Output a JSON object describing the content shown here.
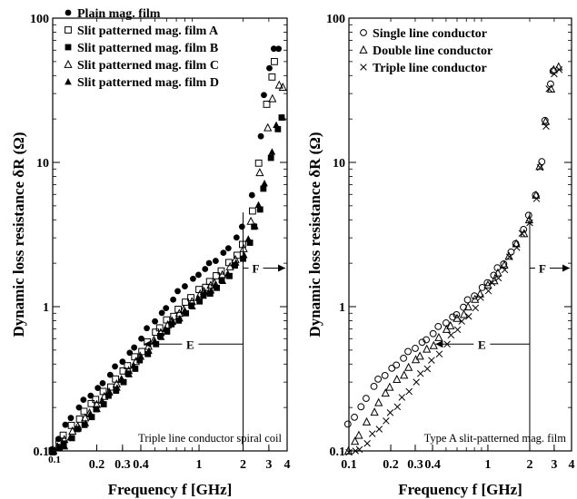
{
  "chart_data": [
    {
      "type": "scatter",
      "xlabel": "Frequency  f [GHz]",
      "ylabel": "Dynamic loss resistance  δR (Ω)",
      "x_scale": "log",
      "y_scale": "log",
      "xlim": [
        0.1,
        4
      ],
      "ylim": [
        0.1,
        100
      ],
      "x_ticks": [
        "0.1",
        "0.2",
        "0.3",
        "0.4",
        "1",
        "2",
        "3",
        "4"
      ],
      "y_ticks": [
        "0.1",
        "1",
        "10",
        "100"
      ],
      "annotation": "Triple line conductor spiral coil",
      "regions": {
        "e_label": "E",
        "f_label": "F",
        "boundary_ghz": 2
      },
      "legend_position": "top-left",
      "series": [
        {
          "name": "Plain mag. film",
          "marker": "filled-circle",
          "points": [
            [
              0.1,
              0.1
            ],
            [
              0.12,
              0.15
            ],
            [
              0.15,
              0.2
            ],
            [
              0.2,
              0.27
            ],
            [
              0.3,
              0.42
            ],
            [
              0.4,
              0.6
            ],
            [
              0.5,
              0.8
            ],
            [
              0.6,
              1.0
            ],
            [
              0.8,
              1.4
            ],
            [
              1,
              1.7
            ],
            [
              1.3,
              2.1
            ],
            [
              1.6,
              2.6
            ],
            [
              2,
              3.5
            ],
            [
              2.3,
              6
            ],
            [
              2.6,
              15
            ],
            [
              2.8,
              30
            ],
            [
              3,
              45
            ],
            [
              3.3,
              60
            ],
            [
              3.5,
              62
            ]
          ]
        },
        {
          "name": "Slit patterned mag. film A",
          "marker": "open-square",
          "points": [
            [
              0.1,
              0.1
            ],
            [
              0.12,
              0.13
            ],
            [
              0.15,
              0.17
            ],
            [
              0.2,
              0.23
            ],
            [
              0.3,
              0.35
            ],
            [
              0.4,
              0.5
            ],
            [
              0.5,
              0.65
            ],
            [
              0.6,
              0.8
            ],
            [
              0.8,
              1.05
            ],
            [
              1,
              1.3
            ],
            [
              1.3,
              1.6
            ],
            [
              1.6,
              2.0
            ],
            [
              2,
              2.7
            ],
            [
              2.3,
              4.5
            ],
            [
              2.6,
              10
            ],
            [
              2.9,
              25
            ],
            [
              3.1,
              40
            ],
            [
              3.3,
              50
            ]
          ]
        },
        {
          "name": "Slit patterned mag. film B",
          "marker": "filled-square",
          "points": [
            [
              0.1,
              0.1
            ],
            [
              0.12,
              0.11
            ],
            [
              0.15,
              0.14
            ],
            [
              0.2,
              0.19
            ],
            [
              0.3,
              0.3
            ],
            [
              0.4,
              0.42
            ],
            [
              0.5,
              0.55
            ],
            [
              0.6,
              0.68
            ],
            [
              0.8,
              0.9
            ],
            [
              1,
              1.1
            ],
            [
              1.3,
              1.35
            ],
            [
              1.6,
              1.65
            ],
            [
              2,
              2.2
            ],
            [
              2.4,
              3.5
            ],
            [
              2.8,
              6.5
            ],
            [
              3.1,
              11
            ],
            [
              3.4,
              17
            ],
            [
              3.7,
              20
            ]
          ]
        },
        {
          "name": "Slit patterned mag. film C",
          "marker": "open-triangle",
          "points": [
            [
              0.1,
              0.1
            ],
            [
              0.12,
              0.12
            ],
            [
              0.15,
              0.15
            ],
            [
              0.2,
              0.21
            ],
            [
              0.3,
              0.32
            ],
            [
              0.4,
              0.46
            ],
            [
              0.5,
              0.6
            ],
            [
              0.6,
              0.73
            ],
            [
              0.8,
              0.98
            ],
            [
              1,
              1.2
            ],
            [
              1.3,
              1.5
            ],
            [
              1.6,
              1.85
            ],
            [
              2,
              2.5
            ],
            [
              2.3,
              4
            ],
            [
              2.6,
              8.5
            ],
            [
              2.9,
              17
            ],
            [
              3.2,
              28
            ],
            [
              3.5,
              34
            ],
            [
              3.8,
              34
            ]
          ]
        },
        {
          "name": "Slit patterned mag. film D",
          "marker": "filled-triangle",
          "points": [
            [
              0.1,
              0.1
            ],
            [
              0.12,
              0.11
            ],
            [
              0.15,
              0.14
            ],
            [
              0.2,
              0.2
            ],
            [
              0.3,
              0.31
            ],
            [
              0.4,
              0.44
            ],
            [
              0.5,
              0.57
            ],
            [
              0.6,
              0.7
            ],
            [
              0.8,
              0.92
            ],
            [
              1,
              1.15
            ],
            [
              1.3,
              1.4
            ],
            [
              1.6,
              1.7
            ],
            [
              2,
              2.3
            ],
            [
              2.4,
              3.7
            ],
            [
              2.8,
              7
            ],
            [
              3.1,
              12
            ],
            [
              3.4,
              18
            ],
            [
              3.7,
              21
            ]
          ]
        }
      ]
    },
    {
      "type": "scatter",
      "xlabel": "Frequency  f [GHz]",
      "ylabel": "Dynamic loss resistance  δR (Ω)",
      "x_scale": "log",
      "y_scale": "log",
      "xlim": [
        0.1,
        4
      ],
      "ylim": [
        0.1,
        100
      ],
      "x_ticks": [
        "0.1",
        "0.2",
        "0.3",
        "0.4",
        "1",
        "2",
        "3",
        "4"
      ],
      "y_ticks": [
        "0.1",
        "1",
        "10",
        "100"
      ],
      "annotation": "Type A slit-patterned mag. film",
      "regions": {
        "e_label": "E",
        "f_label": "F",
        "boundary_ghz": 2
      },
      "legend_position": "top-left",
      "series": [
        {
          "name": "Single line conductor",
          "marker": "open-circle",
          "points": [
            [
              0.1,
              0.15
            ],
            [
              0.12,
              0.2
            ],
            [
              0.15,
              0.28
            ],
            [
              0.2,
              0.37
            ],
            [
              0.3,
              0.52
            ],
            [
              0.4,
              0.65
            ],
            [
              0.5,
              0.78
            ],
            [
              0.6,
              0.9
            ],
            [
              0.8,
              1.2
            ],
            [
              1,
              1.5
            ],
            [
              1.3,
              2.0
            ],
            [
              1.6,
              2.8
            ],
            [
              2,
              4.2
            ],
            [
              2.2,
              6
            ],
            [
              2.4,
              10
            ],
            [
              2.6,
              20
            ],
            [
              2.8,
              35
            ],
            [
              3,
              42
            ]
          ]
        },
        {
          "name": "Double line conductor",
          "marker": "open-triangle",
          "points": [
            [
              0.1,
              0.1
            ],
            [
              0.12,
              0.13
            ],
            [
              0.15,
              0.19
            ],
            [
              0.2,
              0.28
            ],
            [
              0.3,
              0.42
            ],
            [
              0.4,
              0.55
            ],
            [
              0.5,
              0.68
            ],
            [
              0.6,
              0.82
            ],
            [
              0.8,
              1.1
            ],
            [
              1,
              1.4
            ],
            [
              1.3,
              1.9
            ],
            [
              1.6,
              2.7
            ],
            [
              2,
              4.0
            ],
            [
              2.2,
              5.8
            ],
            [
              2.4,
              9.5
            ],
            [
              2.6,
              19
            ],
            [
              2.8,
              33
            ],
            [
              3,
              44
            ],
            [
              3.2,
              45
            ]
          ]
        },
        {
          "name": "Triple line conductor",
          "marker": "cross",
          "points": [
            [
              0.1,
              0.1
            ],
            [
              0.12,
              0.1
            ],
            [
              0.15,
              0.13
            ],
            [
              0.2,
              0.18
            ],
            [
              0.3,
              0.3
            ],
            [
              0.4,
              0.42
            ],
            [
              0.5,
              0.55
            ],
            [
              0.6,
              0.7
            ],
            [
              0.8,
              0.98
            ],
            [
              1,
              1.3
            ],
            [
              1.3,
              1.8
            ],
            [
              1.6,
              2.6
            ],
            [
              2,
              3.9
            ],
            [
              2.2,
              5.6
            ],
            [
              2.4,
              9
            ],
            [
              2.6,
              18
            ],
            [
              2.8,
              32
            ],
            [
              3,
              42
            ],
            [
              3.2,
              44
            ]
          ]
        }
      ]
    }
  ]
}
